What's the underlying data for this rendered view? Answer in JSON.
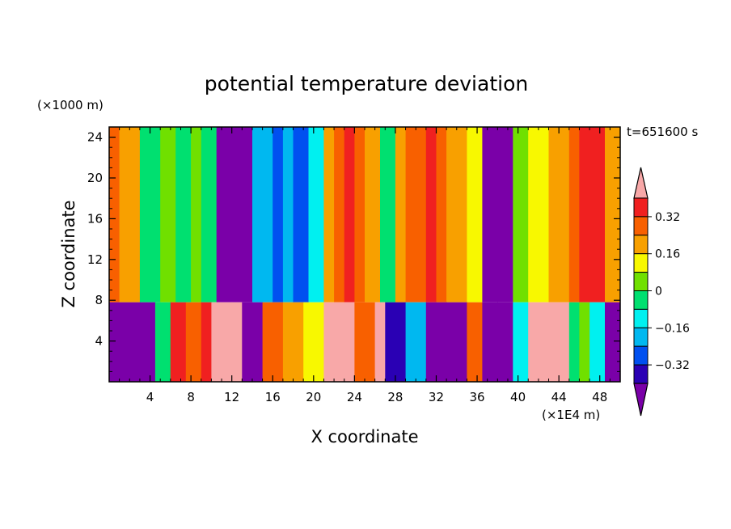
{
  "chart_data": {
    "type": "heatmap",
    "title": "potential temperature deviation",
    "xlabel": "X coordinate",
    "ylabel": "Z coordinate",
    "x_unit": "(×1E4 m)",
    "y_unit": "(×1000 m)",
    "time_label": "t=651600 s",
    "xlim": [
      0,
      50
    ],
    "ylim": [
      0,
      25
    ],
    "x_ticks": [
      "4",
      "8",
      "12",
      "16",
      "20",
      "24",
      "28",
      "32",
      "36",
      "40",
      "44",
      "48"
    ],
    "y_ticks": [
      "4",
      "8",
      "12",
      "16",
      "20",
      "24"
    ],
    "colorbar": {
      "levels": [
        -0.4,
        -0.32,
        -0.24,
        -0.16,
        -0.08,
        0,
        0.08,
        0.16,
        0.24,
        0.32,
        0.4
      ],
      "labels": [
        "0.32",
        "0.16",
        "0",
        "−0.16",
        "−0.32"
      ],
      "colors": [
        "#7a00a8",
        "#2a00b4",
        "#0050f0",
        "#00b8f0",
        "#00f0f0",
        "#00e070",
        "#70e000",
        "#f8f800",
        "#f8a000",
        "#f86000",
        "#f02020",
        "#f8a8a8"
      ]
    },
    "upper_columns_x": [
      0,
      1,
      3,
      5,
      6.5,
      8,
      9,
      10.5,
      13,
      14,
      15,
      16,
      17,
      18,
      19.5,
      21,
      22,
      23,
      24,
      25,
      26.5,
      28,
      29,
      31,
      32,
      33,
      35,
      36.5,
      38,
      39.5,
      41,
      43,
      45,
      46,
      47,
      48.5,
      50
    ],
    "upper_columns_level": [
      9,
      8,
      5,
      6,
      5,
      6,
      5,
      0,
      0,
      3,
      3,
      2,
      3,
      2,
      4,
      8,
      9,
      10,
      9,
      8,
      5,
      8,
      9,
      10,
      9,
      8,
      7,
      0,
      0,
      6,
      7,
      8,
      9,
      10,
      10,
      8,
      8
    ],
    "lower_columns_x": [
      0,
      3,
      4.5,
      6,
      7.5,
      9,
      10,
      12,
      13,
      15,
      17,
      19,
      21,
      24,
      26,
      27,
      29,
      31,
      33,
      35,
      36.5,
      38,
      39.5,
      41,
      43,
      44,
      45,
      46,
      47,
      48.5,
      50
    ],
    "lower_columns_level": [
      0,
      0,
      5,
      10,
      9,
      10,
      11,
      11,
      0,
      9,
      8,
      7,
      11,
      9,
      11,
      1,
      3,
      0,
      0,
      9,
      0,
      0,
      4,
      11,
      11,
      11,
      5,
      6,
      4,
      0,
      0
    ]
  }
}
